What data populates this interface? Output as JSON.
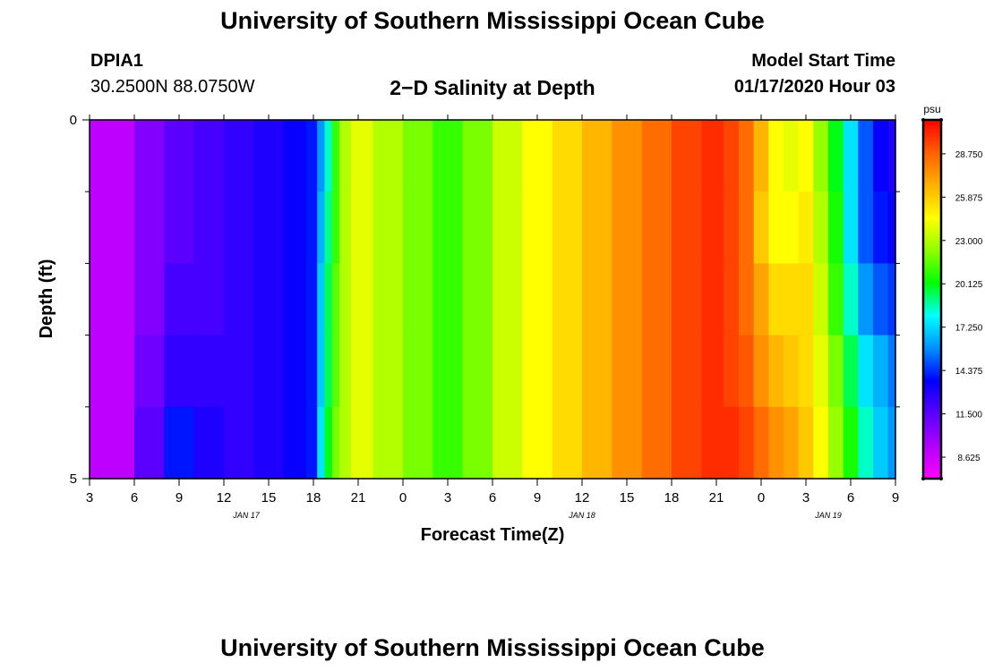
{
  "header": {
    "title": "University of Southern Mississippi Ocean Cube",
    "station_id": "DPIA1",
    "coords": "30.2500N 88.0750W",
    "plot_title": "2−D Salinity at Depth",
    "start_label": "Model Start Time",
    "start_value": "01/17/2020 Hour 03"
  },
  "footer": {
    "title": "University of Southern Mississippi Ocean Cube"
  },
  "colors": {
    "stops": [
      "#ff00ff",
      "#b000ff",
      "#5a00ff",
      "#0000ff",
      "#0090ff",
      "#00ffff",
      "#00ff00",
      "#90ff00",
      "#ffff00",
      "#ffb000",
      "#ff6000",
      "#ff0000"
    ]
  },
  "chart_data": {
    "type": "heatmap",
    "xlabel": "Forecast Time(Z)",
    "ylabel": "Depth (ft)",
    "x_tick_labels": [
      "3",
      "6",
      "9",
      "12",
      "15",
      "18",
      "21",
      "0",
      "3",
      "6",
      "9",
      "12",
      "15",
      "18",
      "21",
      "0",
      "3",
      "6",
      "9"
    ],
    "x_range_hours": [
      0,
      54
    ],
    "date_labels": [
      {
        "text": "JAN 17",
        "hour": 10.5
      },
      {
        "text": "JAN 18",
        "hour": 33
      },
      {
        "text": "JAN 19",
        "hour": 49.5
      }
    ],
    "y_tick_labels": [
      "0",
      "5"
    ],
    "ylim": [
      0,
      5
    ],
    "y_minor_ticks": [
      1,
      2,
      3,
      4
    ],
    "colorbar": {
      "unit": "psu",
      "ticks": [
        "8.625",
        "11.500",
        "14.375",
        "17.250",
        "20.125",
        "23.000",
        "25.875",
        "28.750"
      ],
      "vmin": 7.2,
      "vmax": 31.0
    },
    "depth_rows_ft": [
      0.5,
      1.5,
      2.5,
      3.5,
      4.5
    ],
    "hours": [
      0,
      2,
      4,
      6,
      8,
      10,
      12,
      14,
      15,
      15.5,
      16,
      16.5,
      17,
      18,
      20,
      22,
      24,
      26,
      28,
      30,
      32,
      34,
      36,
      38,
      40,
      42,
      43,
      44,
      45,
      46,
      47,
      48,
      49,
      50,
      51,
      52,
      53,
      54
    ],
    "salinity": [
      [
        9.0,
        9.0,
        10.5,
        11.5,
        12.0,
        12.5,
        13.0,
        13.5,
        14.0,
        16.0,
        18.5,
        21.0,
        23.0,
        24.0,
        23.0,
        22.0,
        21.0,
        22.0,
        23.5,
        24.5,
        25.5,
        26.5,
        27.5,
        28.5,
        29.5,
        30.0,
        29.5,
        28.5,
        26.5,
        24.5,
        24.0,
        24.5,
        22.5,
        20.0,
        17.5,
        15.0,
        13.5,
        13.0
      ],
      [
        9.0,
        9.0,
        10.5,
        11.5,
        12.0,
        12.5,
        13.0,
        13.5,
        14.0,
        16.5,
        19.0,
        21.0,
        23.0,
        24.0,
        23.0,
        22.0,
        21.0,
        22.0,
        23.5,
        24.5,
        25.5,
        26.5,
        27.5,
        28.5,
        29.5,
        30.0,
        29.5,
        28.5,
        26.0,
        24.5,
        24.5,
        25.0,
        23.0,
        20.5,
        17.5,
        15.0,
        14.0,
        13.5
      ],
      [
        9.0,
        9.0,
        10.5,
        12.0,
        12.0,
        12.5,
        13.0,
        13.5,
        14.0,
        17.0,
        19.5,
        21.5,
        23.0,
        24.0,
        23.0,
        22.0,
        21.0,
        22.0,
        23.5,
        24.5,
        25.5,
        26.5,
        27.5,
        28.5,
        29.5,
        30.0,
        29.5,
        28.5,
        27.0,
        25.5,
        25.5,
        25.5,
        23.5,
        21.0,
        18.5,
        16.0,
        15.0,
        14.5
      ],
      [
        9.0,
        9.0,
        11.0,
        12.5,
        12.5,
        12.5,
        13.0,
        13.5,
        14.0,
        17.0,
        19.5,
        21.5,
        23.0,
        24.0,
        23.0,
        22.0,
        21.0,
        22.0,
        23.5,
        24.5,
        25.5,
        26.5,
        27.5,
        28.5,
        29.5,
        30.0,
        29.5,
        29.0,
        27.5,
        26.5,
        26.0,
        25.5,
        24.0,
        22.0,
        19.5,
        17.5,
        16.5,
        15.5
      ],
      [
        9.0,
        9.0,
        11.5,
        14.0,
        13.0,
        12.5,
        13.0,
        13.5,
        14.0,
        17.5,
        20.0,
        22.0,
        23.0,
        24.0,
        23.0,
        22.0,
        21.0,
        22.0,
        23.5,
        24.5,
        25.5,
        26.5,
        27.5,
        28.5,
        29.5,
        30.0,
        30.0,
        29.5,
        28.5,
        27.5,
        27.0,
        26.0,
        24.5,
        22.5,
        20.5,
        18.5,
        17.0,
        16.0
      ]
    ]
  }
}
